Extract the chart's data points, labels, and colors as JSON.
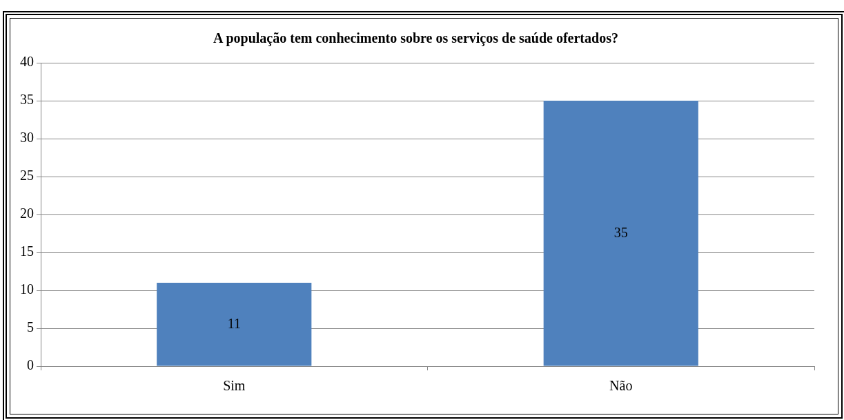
{
  "chart_data": {
    "type": "bar",
    "title": "A população tem conhecimento sobre os serviços de saúde ofertados?",
    "categories": [
      "Sim",
      "Não"
    ],
    "values": [
      11,
      35
    ],
    "color": "#4f81bd",
    "ylim": [
      0,
      40
    ],
    "yticks": [
      0,
      5,
      10,
      15,
      20,
      25,
      30,
      35,
      40
    ],
    "grid": "y",
    "data_labels": true
  }
}
